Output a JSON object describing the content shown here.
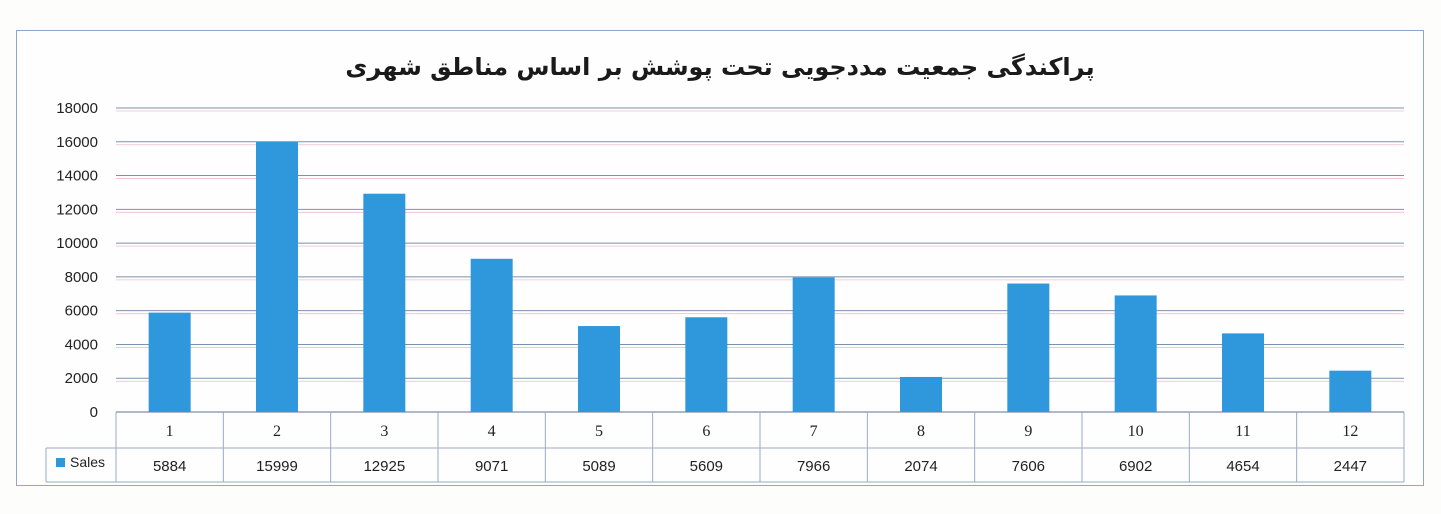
{
  "chart_data": {
    "type": "bar",
    "title": "پراکندگی جمعیت مددجویی تحت پوشش بر اساس مناطق شهری",
    "categories": [
      "1",
      "2",
      "3",
      "4",
      "5",
      "6",
      "7",
      "8",
      "9",
      "10",
      "11",
      "12"
    ],
    "series": [
      {
        "name": "Sales",
        "values": [
          5884,
          15999,
          12925,
          9071,
          5089,
          5609,
          7966,
          2074,
          7606,
          6902,
          4654,
          2447
        ]
      }
    ],
    "ylim": [
      0,
      18000
    ],
    "yticks": [
      "0",
      "2000",
      "4000",
      "6000",
      "8000",
      "10000",
      "12000",
      "14000",
      "16000",
      "18000"
    ],
    "grid": true,
    "legend": "data-table",
    "data_table": true
  },
  "colors": {
    "bar": "#2f97dc",
    "gridline": "#7f8fae",
    "pink_gridline": "#e08aa0",
    "table_border": "#9aa8c4"
  }
}
